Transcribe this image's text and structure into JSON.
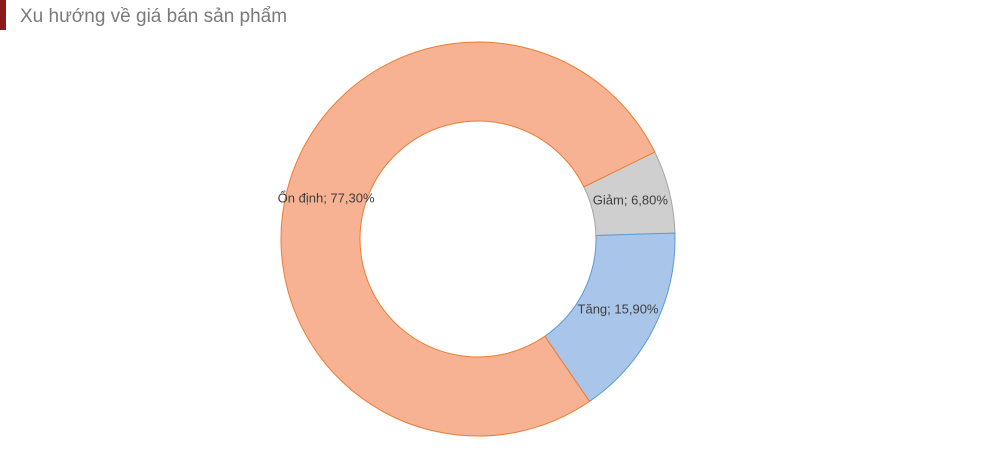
{
  "chart_data": {
    "type": "donut",
    "title": "Xu hướng về giá bán sản phẩm",
    "categories": [
      "Giảm",
      "Tăng",
      "Ổn định"
    ],
    "values": [
      6.8,
      15.9,
      77.3
    ],
    "value_labels": [
      "Giảm; 6,80%",
      "Tăng; 15,90%",
      "Ổn định; 77,30%"
    ],
    "colors": [
      "#cfcfcf",
      "#a9c6ea",
      "#f6b293"
    ],
    "edge_colors": [
      "#a5a5a5",
      "#5b9bd5",
      "#ed7d31"
    ]
  }
}
